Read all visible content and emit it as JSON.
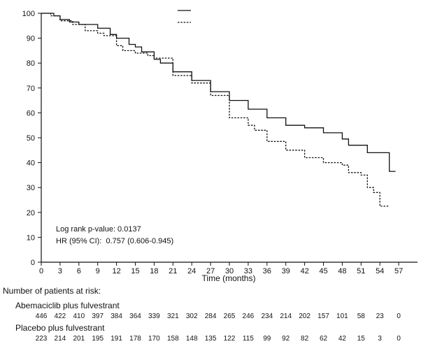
{
  "chart_data": {
    "type": "line",
    "title": "",
    "xlabel": "Time (months)",
    "ylabel": "",
    "xlim": [
      0,
      60
    ],
    "ylim": [
      0,
      100
    ],
    "xticks": [
      0,
      3,
      6,
      9,
      12,
      15,
      18,
      21,
      24,
      27,
      30,
      33,
      36,
      39,
      42,
      45,
      48,
      51,
      54,
      57
    ],
    "yticks": [
      0,
      10,
      20,
      30,
      40,
      50,
      60,
      70,
      80,
      90,
      100
    ],
    "grid": false,
    "legend": "top-center",
    "series": [
      {
        "line_style": "solid",
        "points": [
          [
            0,
            100
          ],
          [
            2,
            99
          ],
          [
            3,
            97.5
          ],
          [
            4.5,
            96.5
          ],
          [
            6,
            95.5
          ],
          [
            9,
            94
          ],
          [
            11,
            91.5
          ],
          [
            12,
            90
          ],
          [
            14,
            87.5
          ],
          [
            15,
            86.5
          ],
          [
            16,
            84.5
          ],
          [
            18,
            81.5
          ],
          [
            19,
            80
          ],
          [
            21,
            76.5
          ],
          [
            24,
            73
          ],
          [
            27,
            68.5
          ],
          [
            30,
            65
          ],
          [
            33,
            61.5
          ],
          [
            36,
            58
          ],
          [
            39,
            55
          ],
          [
            42,
            54
          ],
          [
            45,
            52
          ],
          [
            48,
            49.5
          ],
          [
            49,
            47
          ],
          [
            52,
            44
          ],
          [
            55.5,
            44
          ],
          [
            55.5,
            36.5
          ],
          [
            56.5,
            36.5
          ]
        ]
      },
      {
        "line_style": "dashed",
        "points": [
          [
            0,
            100
          ],
          [
            1.5,
            99
          ],
          [
            3,
            97
          ],
          [
            5,
            95.5
          ],
          [
            7,
            93
          ],
          [
            9,
            92
          ],
          [
            10,
            91
          ],
          [
            12,
            87
          ],
          [
            13,
            85
          ],
          [
            15,
            84
          ],
          [
            17,
            83
          ],
          [
            18,
            82
          ],
          [
            21,
            75
          ],
          [
            24,
            72
          ],
          [
            27,
            67
          ],
          [
            30,
            58
          ],
          [
            33,
            55
          ],
          [
            34,
            53
          ],
          [
            36,
            48.5
          ],
          [
            39,
            45
          ],
          [
            42,
            42
          ],
          [
            45,
            40
          ],
          [
            48,
            39
          ],
          [
            49,
            36
          ],
          [
            51,
            35
          ],
          [
            52,
            30
          ],
          [
            53,
            28
          ],
          [
            54,
            22.5
          ],
          [
            55.5,
            22.5
          ]
        ]
      }
    ],
    "annotations": [
      "Log rank p-value: 0.0137",
      "HR (95% CI):  0.757 (0.606-0.945)"
    ]
  },
  "risk_table": {
    "title": "Number of patients at risk:",
    "times": [
      0,
      3,
      6,
      9,
      12,
      15,
      18,
      21,
      24,
      27,
      30,
      33,
      36,
      39,
      42,
      45,
      48,
      51,
      54,
      57
    ],
    "rows": [
      {
        "label": "Abemaciclib plus fulvestrant",
        "values": [
          "446",
          "422",
          "410",
          "397",
          "384",
          "364",
          "339",
          "321",
          "302",
          "284",
          "265",
          "246",
          "234",
          "214",
          "202",
          "157",
          "101",
          "58",
          "23",
          "0"
        ]
      },
      {
        "label": "Placebo plus fulvestrant",
        "values": [
          "223",
          "214",
          "201",
          "195",
          "191",
          "178",
          "170",
          "158",
          "148",
          "135",
          "122",
          "115",
          "99",
          "92",
          "82",
          "62",
          "42",
          "15",
          "3",
          "0"
        ]
      }
    ]
  }
}
